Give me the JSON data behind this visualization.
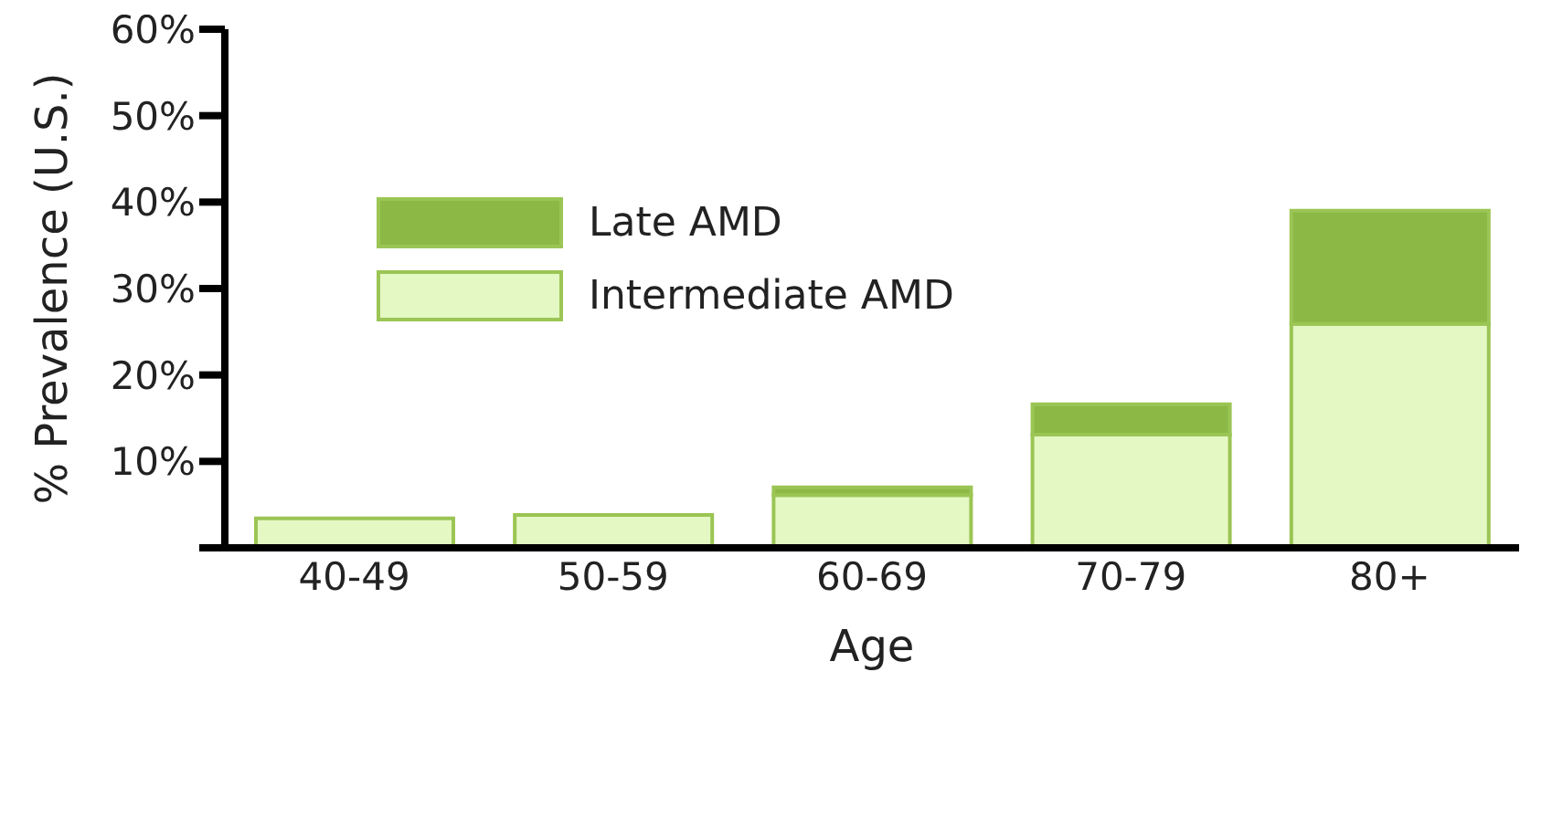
{
  "chart_data": {
    "type": "bar",
    "xlabel": "Age",
    "ylabel": "% Prevalence (U.S.)",
    "categories": [
      "40-49",
      "50-59",
      "60-69",
      "70-79",
      "80+"
    ],
    "stacked": true,
    "series": [
      {
        "name": "Intermediate AMD",
        "color": "#e4f8c4",
        "values": [
          3.4,
          3.8,
          6.1,
          13.1,
          25.9
        ]
      },
      {
        "name": "Late AMD",
        "color": "#8cb845",
        "values": [
          0,
          0,
          0.9,
          3.5,
          13.1
        ]
      }
    ],
    "ylim": [
      0,
      60
    ],
    "yticks": [
      {
        "value": 0,
        "label": null
      },
      {
        "value": 10,
        "label": "10%"
      },
      {
        "value": 20,
        "label": "20%"
      },
      {
        "value": 30,
        "label": "30%"
      },
      {
        "value": 40,
        "label": "40%"
      },
      {
        "value": 50,
        "label": "50%"
      },
      {
        "value": 60,
        "label": "60%"
      }
    ],
    "grid": false,
    "legend": "top left"
  }
}
